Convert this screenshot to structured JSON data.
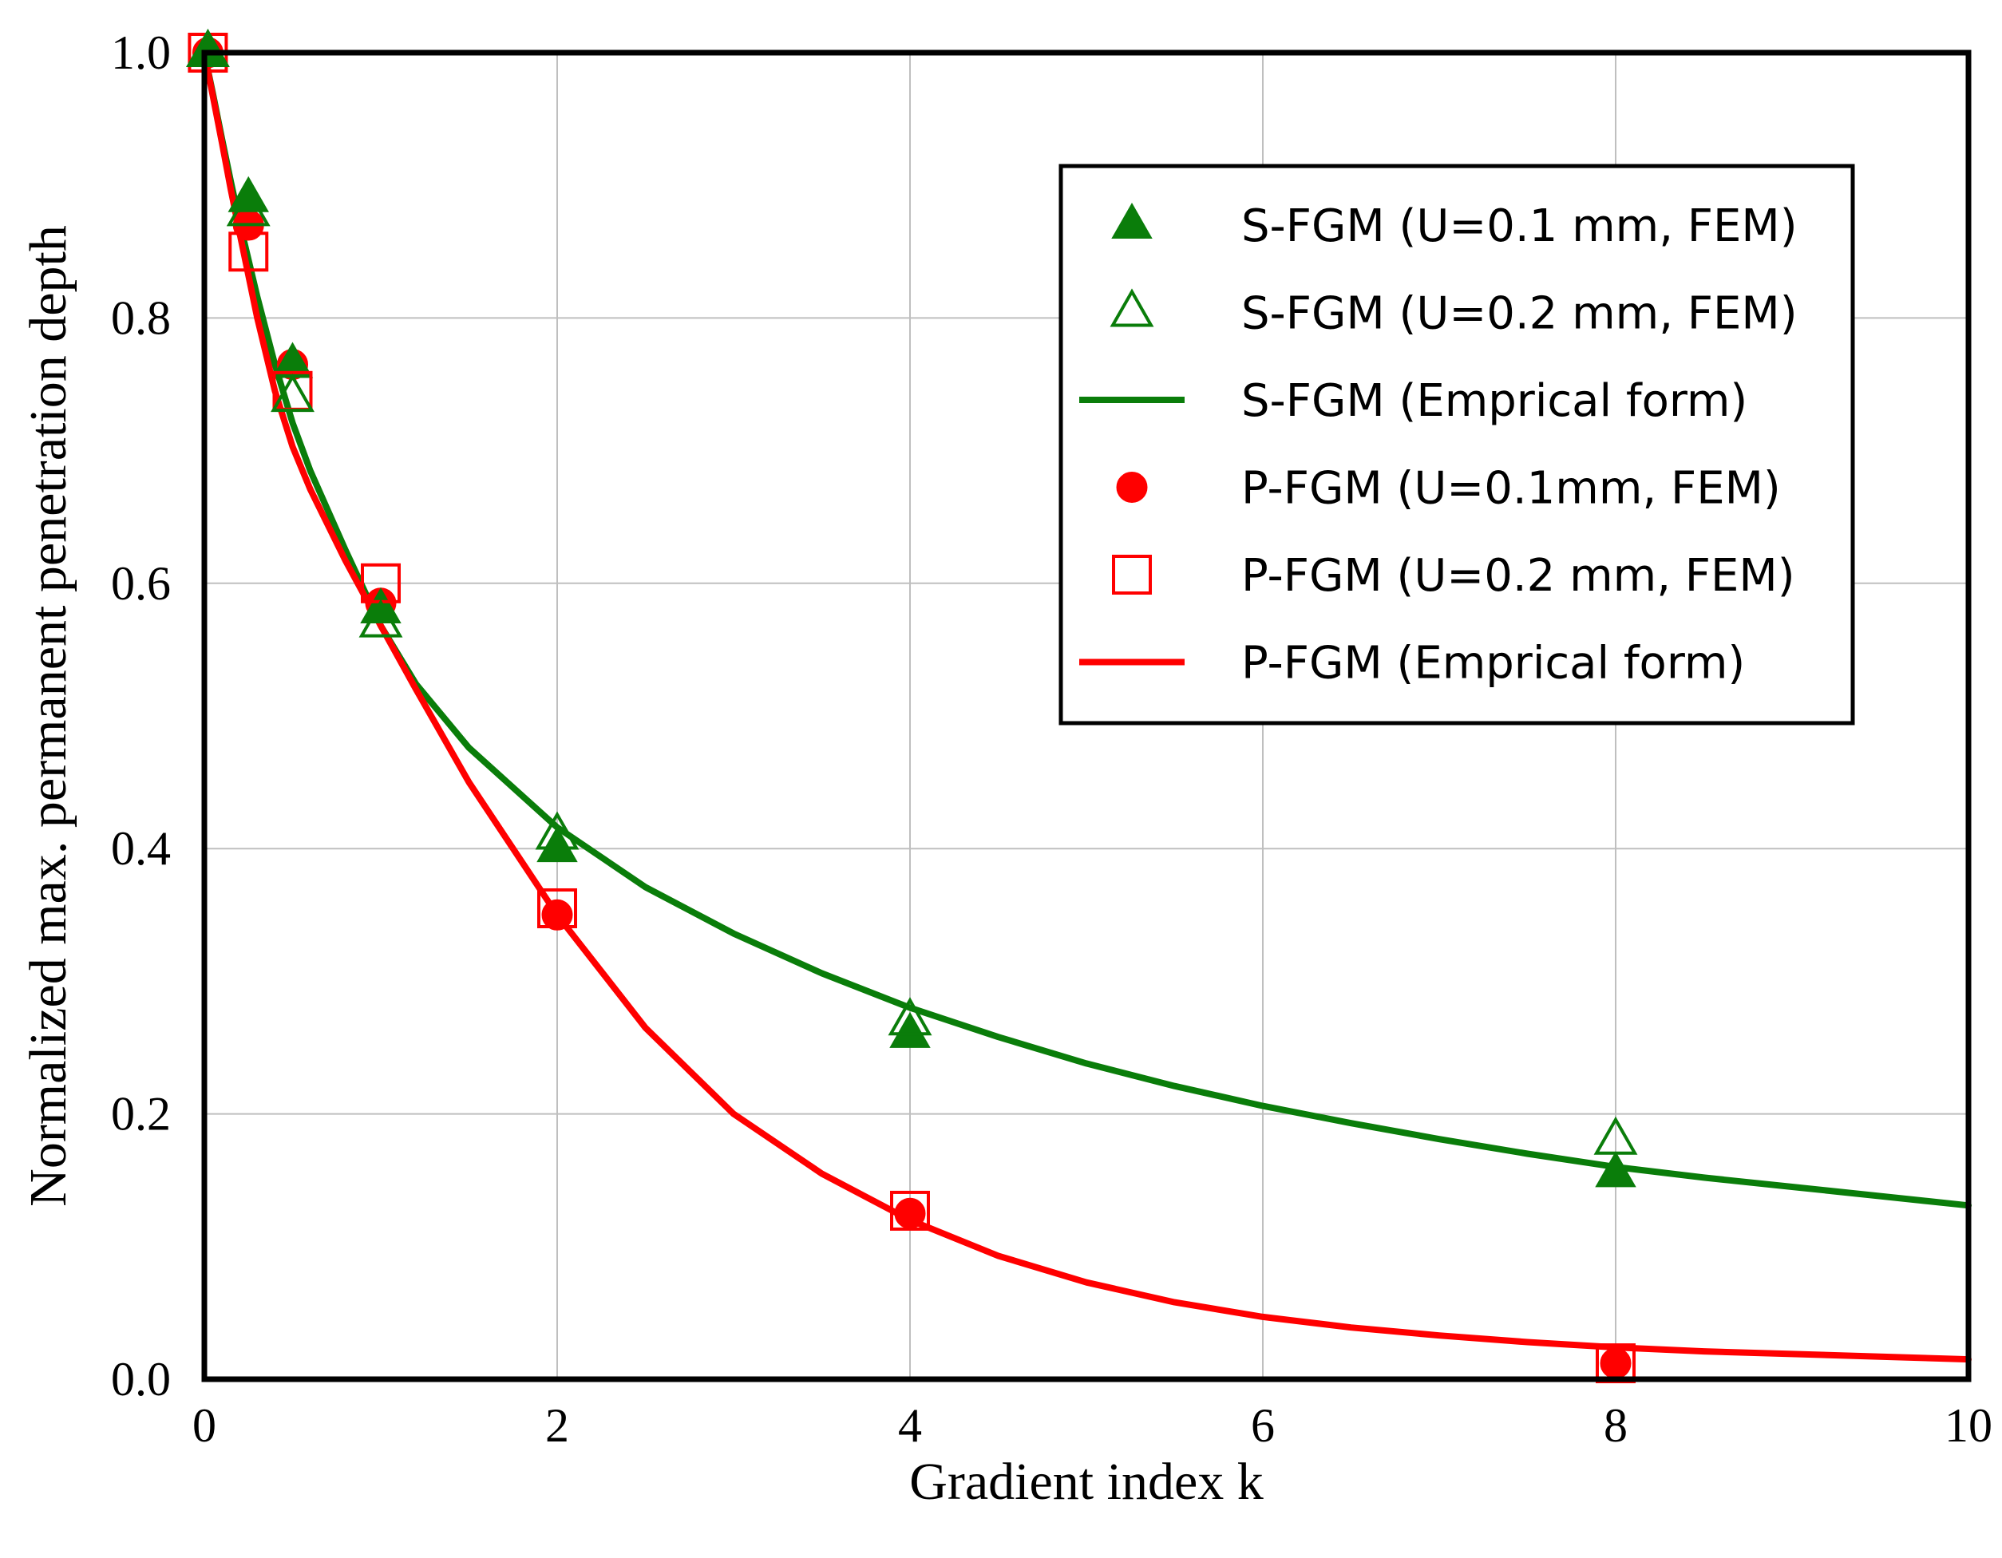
{
  "chart_data": {
    "type": "scatter",
    "title": "",
    "xlabel": "Gradient index k",
    "ylabel": "Normalized max. permanent penetration depth",
    "xlim": [
      0,
      10
    ],
    "ylim": [
      0,
      1
    ],
    "xticks": [
      0,
      2,
      4,
      6,
      8,
      10
    ],
    "yticks": [
      0.0,
      0.2,
      0.4,
      0.6,
      0.8,
      1.0
    ],
    "xtick_labels": [
      "0",
      "2",
      "4",
      "6",
      "8",
      "10"
    ],
    "ytick_labels": [
      "0.0",
      "0.2",
      "0.4",
      "0.6",
      "0.8",
      "1.0"
    ],
    "grid": true,
    "legend_position": "top-right",
    "series": [
      {
        "name": "S-FGM (U=0.1 mm, FEM)",
        "kind": "marker",
        "marker": "triangle-filled",
        "color": "#0a7d0a",
        "x": [
          0.02,
          0.25,
          0.5,
          1.0,
          2.0,
          4.0,
          8.0
        ],
        "y": [
          1.0,
          0.89,
          0.765,
          0.58,
          0.4,
          0.26,
          0.155
        ]
      },
      {
        "name": "S-FGM (U=0.2 mm, FEM)",
        "kind": "marker",
        "marker": "triangle-open",
        "color": "#0a7d0a",
        "x": [
          0.02,
          0.25,
          0.5,
          1.0,
          2.0,
          4.0,
          8.0
        ],
        "y": [
          1.0,
          0.88,
          0.74,
          0.57,
          0.41,
          0.27,
          0.18
        ]
      },
      {
        "name": "S-FGM (Emprical form)",
        "kind": "line",
        "color": "#0a7d0a",
        "x": [
          0.0,
          0.05,
          0.1,
          0.15,
          0.2,
          0.3,
          0.4,
          0.5,
          0.6,
          0.8,
          1.0,
          1.2,
          1.5,
          2.0,
          2.5,
          3.0,
          3.5,
          4.0,
          4.5,
          5.0,
          5.5,
          6.0,
          6.5,
          7.0,
          7.5,
          8.0,
          8.5,
          9.0,
          9.5,
          10.0
        ],
        "y": [
          1.0,
          0.968,
          0.935,
          0.903,
          0.872,
          0.816,
          0.765,
          0.721,
          0.685,
          0.625,
          0.568,
          0.524,
          0.476,
          0.416,
          0.371,
          0.336,
          0.306,
          0.28,
          0.258,
          0.238,
          0.221,
          0.206,
          0.193,
          0.181,
          0.17,
          0.16,
          0.152,
          0.145,
          0.138,
          0.131
        ]
      },
      {
        "name": "P-FGM (U=0.1mm, FEM)",
        "kind": "marker",
        "marker": "circle-filled",
        "color": "#ff0000",
        "x": [
          0.02,
          0.25,
          0.5,
          1.0,
          2.0,
          4.0,
          8.0
        ],
        "y": [
          1.0,
          0.87,
          0.765,
          0.585,
          0.35,
          0.125,
          0.012
        ]
      },
      {
        "name": "P-FGM (U=0.2 mm, FEM)",
        "kind": "marker",
        "marker": "square-open",
        "color": "#ff0000",
        "x": [
          0.02,
          0.25,
          0.5,
          1.0,
          2.0,
          4.0,
          8.0
        ],
        "y": [
          1.0,
          0.85,
          0.745,
          0.6,
          0.355,
          0.127,
          0.012
        ]
      },
      {
        "name": "P-FGM (Emprical form)",
        "kind": "line",
        "color": "#ff0000",
        "x": [
          0.0,
          0.05,
          0.1,
          0.15,
          0.2,
          0.3,
          0.4,
          0.5,
          0.6,
          0.8,
          1.0,
          1.2,
          1.5,
          2.0,
          2.5,
          3.0,
          3.5,
          4.0,
          4.5,
          5.0,
          5.5,
          6.0,
          6.5,
          7.0,
          7.5,
          8.0,
          8.5,
          9.0,
          9.5,
          10.0
        ],
        "y": [
          1.0,
          0.966,
          0.932,
          0.897,
          0.864,
          0.8,
          0.745,
          0.703,
          0.671,
          0.617,
          0.568,
          0.52,
          0.45,
          0.35,
          0.265,
          0.2,
          0.155,
          0.12,
          0.093,
          0.073,
          0.058,
          0.047,
          0.039,
          0.033,
          0.028,
          0.024,
          0.021,
          0.019,
          0.017,
          0.015
        ]
      }
    ]
  }
}
